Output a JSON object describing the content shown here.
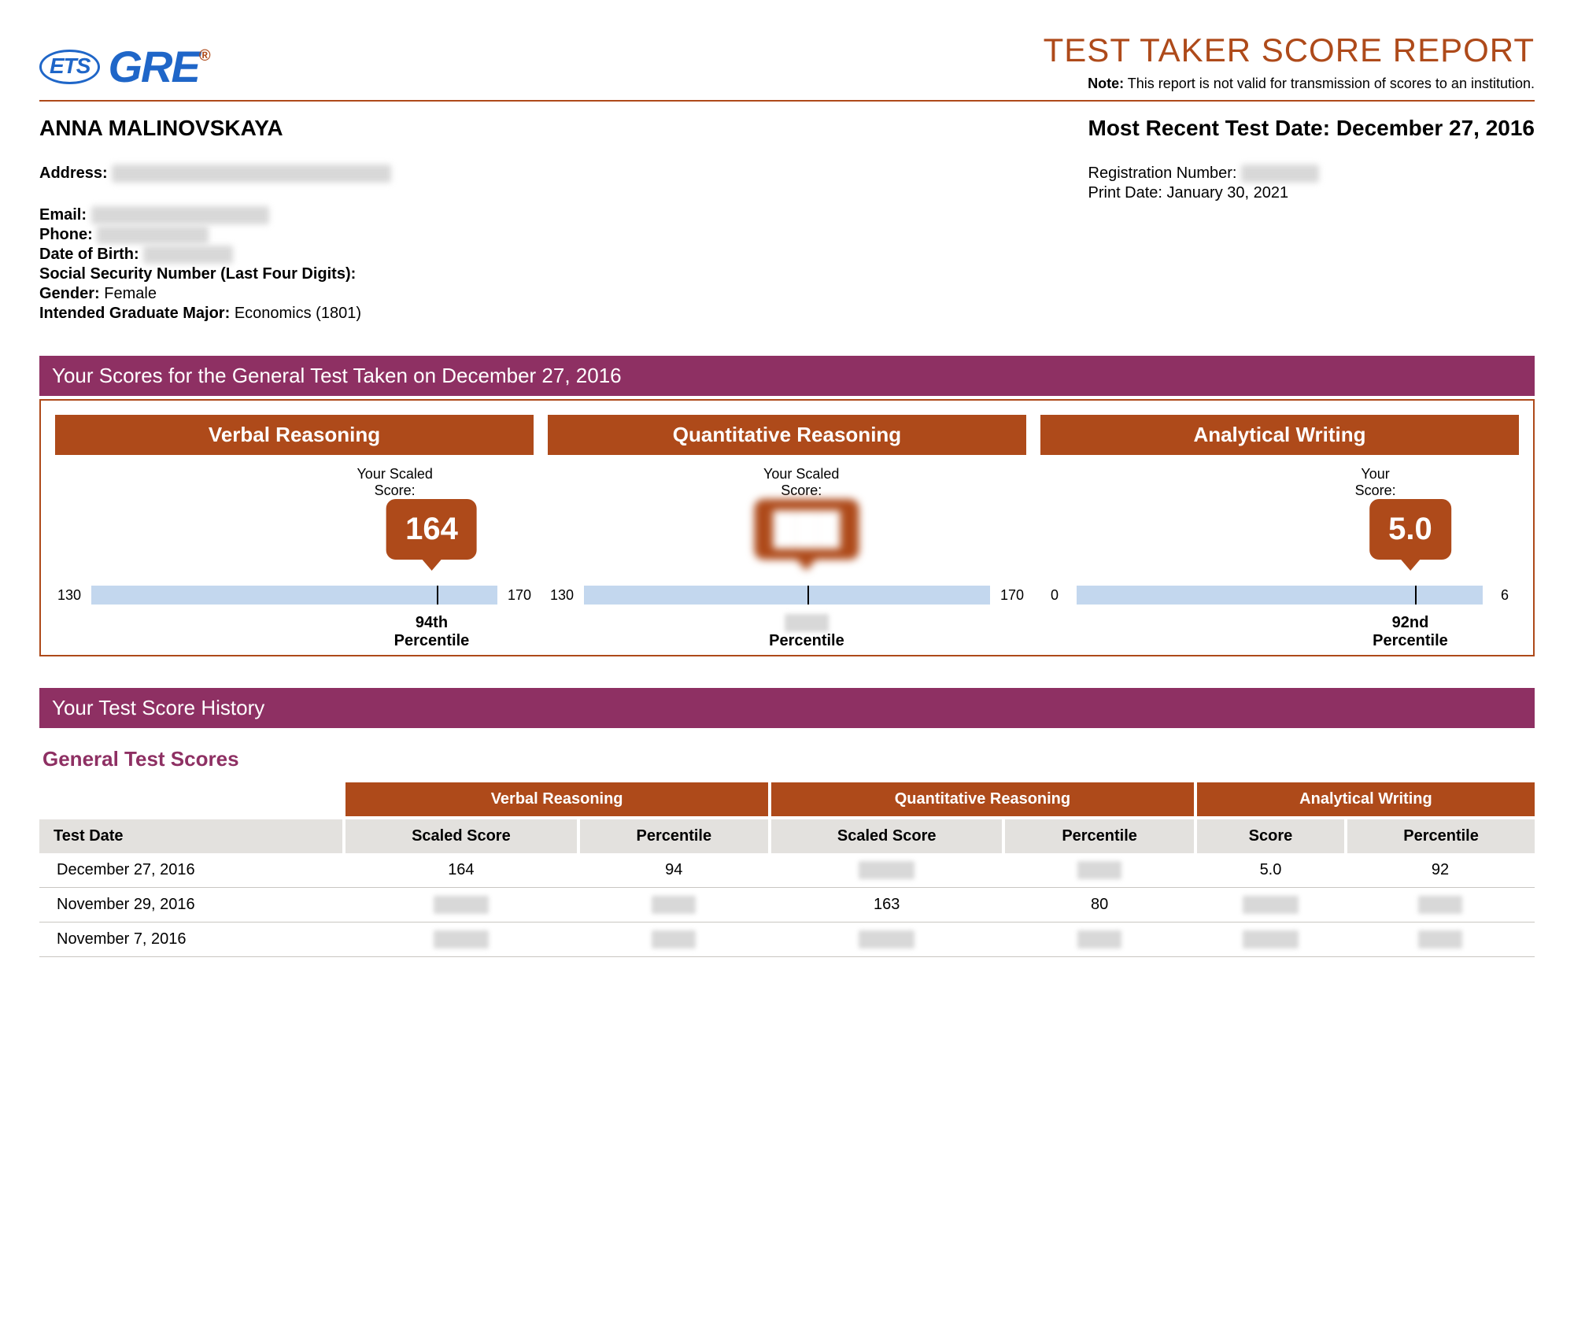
{
  "colors": {
    "accent_orange": "#ae4a1a",
    "accent_purple": "#8e3063",
    "ets_blue": "#1f66c8",
    "bar_fill": "#c3d7ee",
    "table_header_gray": "#e3e1de",
    "background": "#ffffff",
    "text": "#000000",
    "redact": "#d8d8d8"
  },
  "logo": {
    "ets": "ETS",
    "gre": "GRE",
    "reg": "®"
  },
  "header": {
    "title": "TEST TAKER SCORE REPORT",
    "note_label": "Note:",
    "note_text": "This report is not valid for transmission of scores to an institution."
  },
  "taker": {
    "name": "ANNA MALINOVSKAYA",
    "recent_label": "Most Recent Test Date: December 27, 2016",
    "address_label": "Address:",
    "address_value": "█████████████████████████",
    "email_label": "Email:",
    "email_value": "████████████████",
    "phone_label": "Phone:",
    "phone_value": "██████████",
    "dob_label": "Date of Birth:",
    "dob_value": "████████",
    "ssn_label": "Social Security Number (Last Four Digits):",
    "gender_label": "Gender:",
    "gender_value": "Female",
    "major_label": "Intended Graduate Major:",
    "major_value": "Economics (1801)",
    "reg_label": "Registration Number:",
    "reg_value": "███████",
    "print_label": "Print Date:",
    "print_value": "January 30, 2021"
  },
  "scores_section_title": "Your Scores for the General Test Taken on December 27, 2016",
  "score_cards": {
    "verbal": {
      "title": "Verbal Reasoning",
      "your_label": "Your Scaled\nScore:",
      "score": "164",
      "min": 130,
      "max": 170,
      "value": 164,
      "percentile": "94th\nPercentile",
      "redacted_score": false,
      "redacted_pct": false
    },
    "quant": {
      "title": "Quantitative Reasoning",
      "your_label": "Your Scaled\nScore:",
      "score": "███",
      "min": 130,
      "max": 170,
      "value": 152,
      "percentile": "███\nPercentile",
      "redacted_score": true,
      "redacted_pct": true
    },
    "writing": {
      "title": "Analytical Writing",
      "your_label": "Your\nScore:",
      "score": "5.0",
      "min": 0,
      "max": 6,
      "value": 5.0,
      "percentile": "92nd\nPercentile",
      "redacted_score": false,
      "redacted_pct": false
    }
  },
  "history_section_title": "Your Test Score History",
  "history_subheading": "General Test Scores",
  "history_table": {
    "group_headers": [
      "Verbal Reasoning",
      "Quantitative Reasoning",
      "Analytical Writing"
    ],
    "columns": [
      "Test Date",
      "Scaled Score",
      "Percentile",
      "Scaled Score",
      "Percentile",
      "Score",
      "Percentile"
    ],
    "rows": [
      {
        "date": "December 27, 2016",
        "cells": [
          "164",
          "94",
          "███",
          "██",
          "5.0",
          "92"
        ],
        "redacted": [
          false,
          false,
          true,
          true,
          false,
          false
        ]
      },
      {
        "date": "November 29, 2016",
        "cells": [
          "███",
          "██",
          "163",
          "80",
          "███",
          "██"
        ],
        "redacted": [
          true,
          true,
          false,
          false,
          true,
          true
        ]
      },
      {
        "date": "November 7, 2016",
        "cells": [
          "███",
          "██",
          "███",
          "██",
          "███",
          "██"
        ],
        "redacted": [
          true,
          true,
          true,
          true,
          true,
          true
        ]
      }
    ]
  }
}
